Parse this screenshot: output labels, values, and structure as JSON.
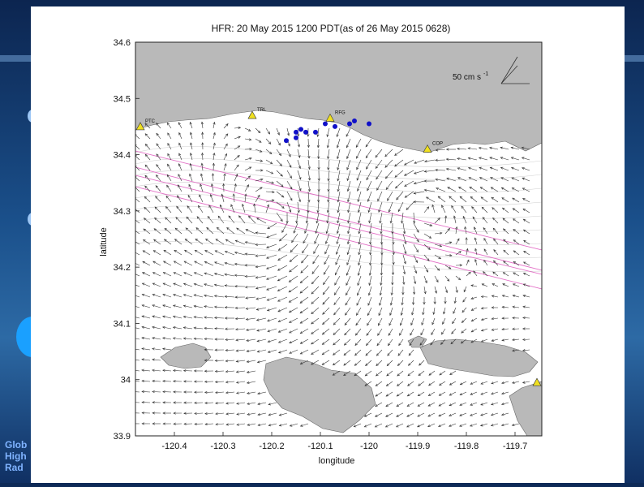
{
  "slide": {
    "side_lines": [
      "Glob",
      "High",
      "Rad"
    ]
  },
  "chart_data": {
    "type": "vector-field",
    "title": "HFR: 20 May 2015 1200 PDT(as of 26 May 2015 0628)",
    "xlabel": "longitude",
    "ylabel": "latitude",
    "xlim": [
      -120.48,
      -119.645
    ],
    "ylim": [
      33.9,
      34.6
    ],
    "x_ticks": [
      "-120.4",
      "-120.3",
      "-120.2",
      "-120.1",
      "-120",
      "-119.9",
      "-119.8",
      "-119.7"
    ],
    "x_tick_values": [
      -120.4,
      -120.3,
      -120.2,
      -120.1,
      -120.0,
      -119.9,
      -119.8,
      -119.7
    ],
    "y_ticks": [
      "33.9",
      "34",
      "34.1",
      "34.2",
      "34.3",
      "34.4",
      "34.5",
      "34.6"
    ],
    "y_tick_values": [
      33.9,
      34.0,
      34.1,
      34.2,
      34.3,
      34.4,
      34.5,
      34.6
    ],
    "scale_label": "50 cm s",
    "scale_exponent": "-1",
    "stations": [
      {
        "name": "PTC",
        "lon": -120.47,
        "lat": 34.45
      },
      {
        "name": "TRL",
        "lon": -120.24,
        "lat": 34.47
      },
      {
        "name": "RFG",
        "lon": -120.08,
        "lat": 34.465
      },
      {
        "name": "COP",
        "lon": -119.88,
        "lat": 34.41
      },
      {
        "name": "",
        "lon": -119.655,
        "lat": 33.995
      }
    ],
    "buoys": [
      {
        "lon": -120.17,
        "lat": 34.425
      },
      {
        "lon": -120.15,
        "lat": 34.44
      },
      {
        "lon": -120.14,
        "lat": 34.445
      },
      {
        "lon": -120.13,
        "lat": 34.44
      },
      {
        "lon": -120.11,
        "lat": 34.44
      },
      {
        "lon": -120.09,
        "lat": 34.455
      },
      {
        "lon": -120.07,
        "lat": 34.45
      },
      {
        "lon": -120.04,
        "lat": 34.455
      },
      {
        "lon": -120.03,
        "lat": 34.46
      },
      {
        "lon": -120.0,
        "lat": 34.455
      },
      {
        "lon": -120.15,
        "lat": 34.43
      }
    ],
    "colors": {
      "land": "#b9b9b9",
      "vector": "#333333",
      "buoy": "#1010c8",
      "station": "#f0e020",
      "shipping_lane": "#e060c0"
    }
  }
}
